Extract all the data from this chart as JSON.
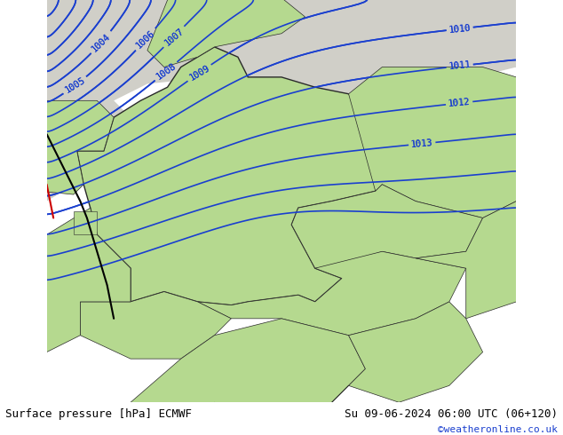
{
  "title_left": "Surface pressure [hPa] ECMWF",
  "title_right": "Su 09-06-2024 06:00 UTC (06+120)",
  "credit": "©weatheronline.co.uk",
  "background_land_green": "#b5d98f",
  "background_sea_gray": "#d0cfc8",
  "contour_color": "#1a3fcf",
  "contour_label_color": "#1a3fcf",
  "border_color": "#2a2a2a",
  "front_black_color": "#000000",
  "front_red_color": "#cc0000",
  "bottom_bar_color": "#d4d4d4",
  "bottom_text_color": "#000000",
  "credit_color": "#1a3fcf",
  "pressure_levels": [
    1004,
    1005,
    1006,
    1007,
    1008,
    1009,
    1010,
    1011,
    1012,
    1013
  ],
  "figsize": [
    6.34,
    4.9
  ],
  "dpi": 100
}
